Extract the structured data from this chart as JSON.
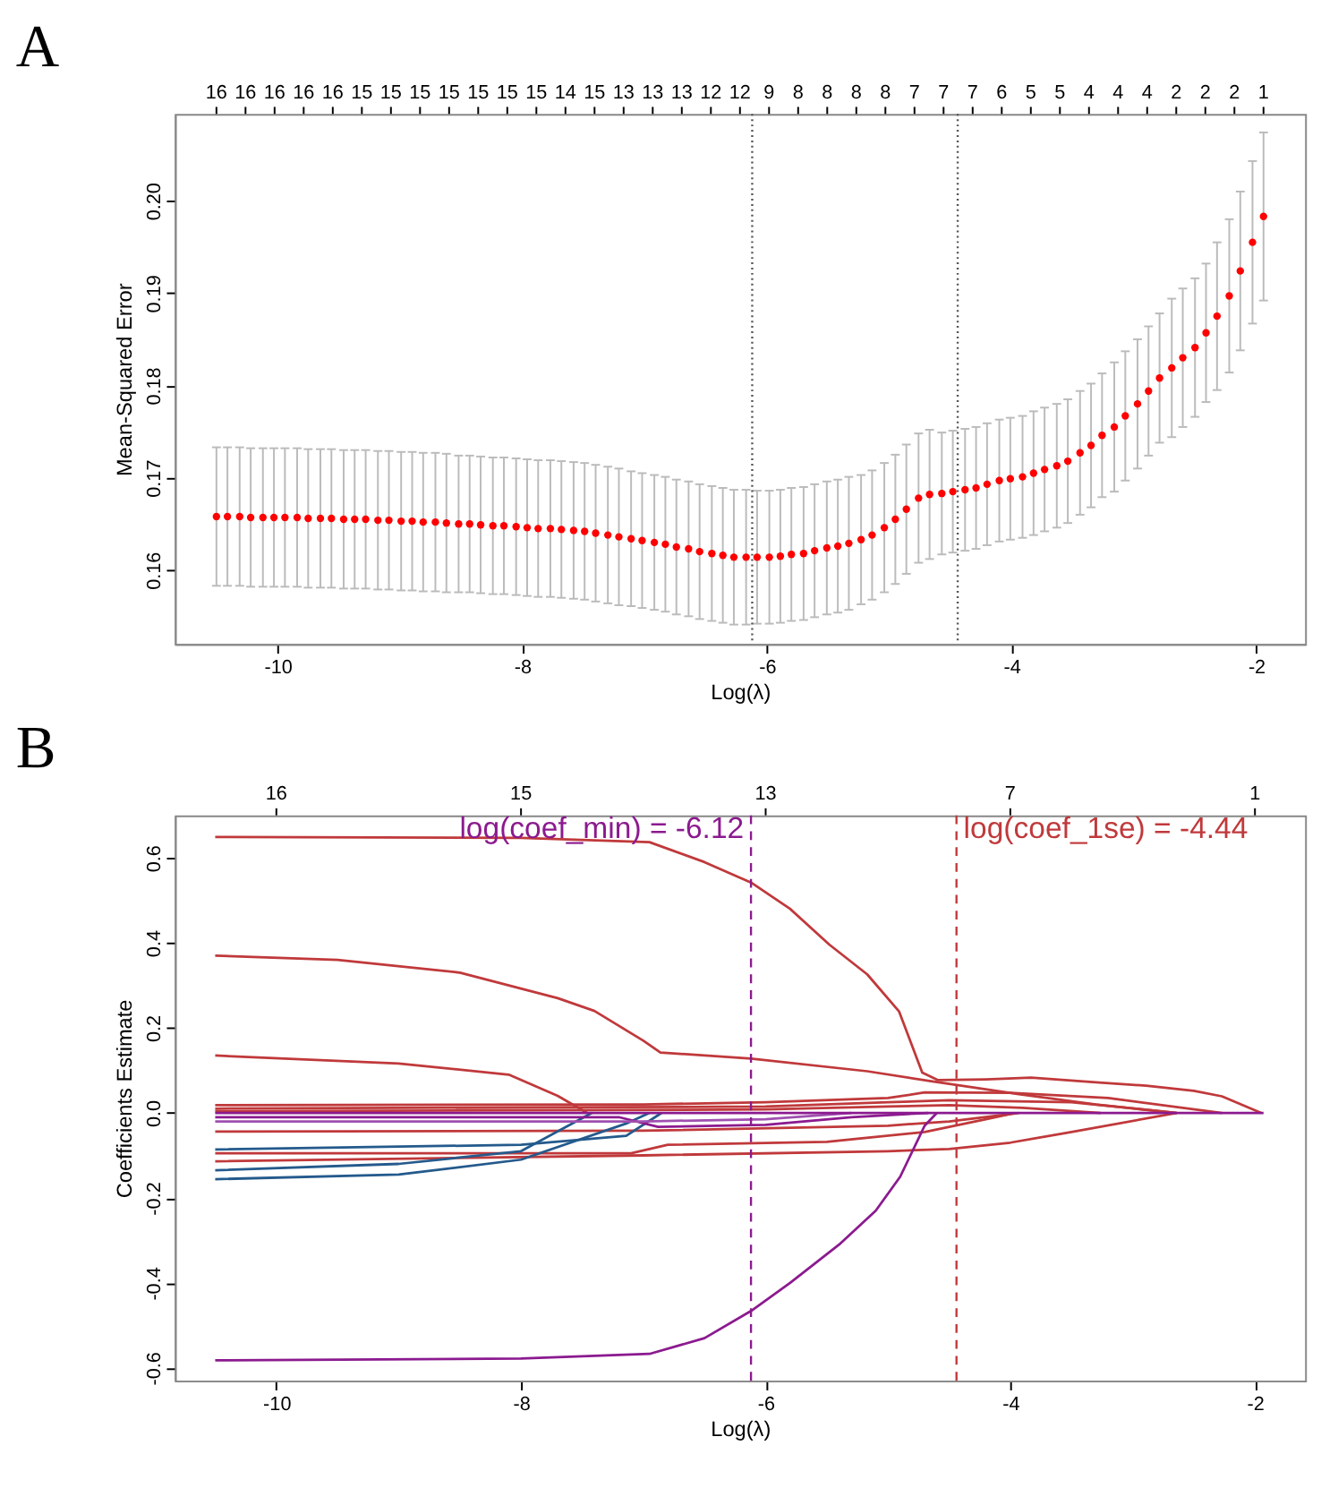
{
  "chart_data": [
    {
      "type": "scatter",
      "title": "A",
      "xlabel": "Log(λ)",
      "ylabel": "Mean-Squared Error",
      "marker": "circle",
      "grid": false,
      "legend": false,
      "x": [
        -10.5,
        -10.41,
        -10.31,
        -10.22,
        -10.12,
        -10.03,
        -9.94,
        -9.84,
        -9.75,
        -9.65,
        -9.56,
        -9.46,
        -9.37,
        -9.28,
        -9.18,
        -9.09,
        -8.99,
        -8.9,
        -8.81,
        -8.71,
        -8.62,
        -8.52,
        -8.43,
        -8.34,
        -8.24,
        -8.15,
        -8.05,
        -7.96,
        -7.87,
        -7.77,
        -7.68,
        -7.58,
        -7.49,
        -7.4,
        -7.3,
        -7.21,
        -7.11,
        -7.02,
        -6.92,
        -6.83,
        -6.74,
        -6.64,
        -6.55,
        -6.45,
        -6.36,
        -6.27,
        -6.17,
        -6.08,
        -5.98,
        -5.89,
        -5.8,
        -5.7,
        -5.61,
        -5.51,
        -5.42,
        -5.33,
        -5.23,
        -5.14,
        -5.04,
        -4.95,
        -4.86,
        -4.76,
        -4.67,
        -4.57,
        -4.48,
        -4.38,
        -4.29,
        -4.2,
        -4.1,
        -4.01,
        -3.91,
        -3.82,
        -3.73,
        -3.63,
        -3.54,
        -3.44,
        -3.35,
        -3.26,
        -3.16,
        -3.07,
        -2.97,
        -2.88,
        -2.79,
        -2.69,
        -2.6,
        -2.5,
        -2.41,
        -2.32,
        -2.22,
        -2.13,
        -2.03,
        -1.94
      ],
      "series": [
        {
          "color": "#ff0000",
          "values": [
            0.1658,
            0.1658,
            0.1658,
            0.1657,
            0.1657,
            0.1657,
            0.1657,
            0.1657,
            0.1656,
            0.1656,
            0.1656,
            0.1655,
            0.1655,
            0.1655,
            0.1654,
            0.1654,
            0.1653,
            0.1653,
            0.1652,
            0.1652,
            0.1651,
            0.165,
            0.165,
            0.1649,
            0.1648,
            0.1648,
            0.1647,
            0.1646,
            0.1645,
            0.1645,
            0.1644,
            0.1643,
            0.1642,
            0.164,
            0.1638,
            0.1636,
            0.1634,
            0.1632,
            0.163,
            0.1628,
            0.1625,
            0.1623,
            0.162,
            0.1618,
            0.1616,
            0.1614,
            0.1614,
            0.1614,
            0.1614,
            0.1615,
            0.1617,
            0.1618,
            0.1621,
            0.1624,
            0.1626,
            0.1629,
            0.1633,
            0.1638,
            0.1646,
            0.1655,
            0.1666,
            0.1678,
            0.1682,
            0.1683,
            0.1685,
            0.1687,
            0.1689,
            0.1693,
            0.1697,
            0.1699,
            0.1701,
            0.1705,
            0.1709,
            0.1713,
            0.1718,
            0.1727,
            0.1735,
            0.1746,
            0.1755,
            0.1767,
            0.178,
            0.1794,
            0.1808,
            0.1819,
            0.183,
            0.1841,
            0.1857,
            0.1875,
            0.1897,
            0.1924,
            0.1955,
            0.1983
          ],
          "errors": [
            0.0075,
            0.0075,
            0.0075,
            0.0075,
            0.0075,
            0.0075,
            0.0075,
            0.0075,
            0.0075,
            0.0075,
            0.0075,
            0.0075,
            0.0075,
            0.0075,
            0.0075,
            0.0075,
            0.0075,
            0.0075,
            0.0075,
            0.0075,
            0.0075,
            0.0074,
            0.0074,
            0.0074,
            0.0074,
            0.0074,
            0.0074,
            0.0074,
            0.0074,
            0.0074,
            0.0074,
            0.0074,
            0.0074,
            0.0074,
            0.0074,
            0.0074,
            0.0073,
            0.0073,
            0.0073,
            0.0073,
            0.0073,
            0.0073,
            0.0073,
            0.0073,
            0.0073,
            0.0073,
            0.0073,
            0.0072,
            0.0072,
            0.0072,
            0.0072,
            0.0072,
            0.0072,
            0.0072,
            0.0072,
            0.0072,
            0.007,
            0.007,
            0.007,
            0.007,
            0.007,
            0.007,
            0.007,
            0.0066,
            0.0066,
            0.0066,
            0.0066,
            0.0066,
            0.0066,
            0.0066,
            0.0066,
            0.0067,
            0.0067,
            0.0067,
            0.0067,
            0.0067,
            0.0067,
            0.0067,
            0.007,
            0.007,
            0.007,
            0.007,
            0.007,
            0.0075,
            0.0075,
            0.0075,
            0.0075,
            0.008,
            0.0083,
            0.0086,
            0.0088,
            0.0091
          ]
        }
      ],
      "xlim": [
        -10.84,
        -1.6
      ],
      "xticks": [
        -10,
        -8,
        -6,
        -4,
        -2
      ],
      "ylim": [
        0.152,
        0.2094
      ],
      "yticks": [
        {
          "value": 0.16,
          "label": "0.16"
        },
        {
          "value": 0.17,
          "label": "0.17"
        },
        {
          "value": 0.18,
          "label": "0.18"
        },
        {
          "value": 0.19,
          "label": "0.19"
        },
        {
          "value": 0.2,
          "label": "0.20"
        }
      ],
      "annotations": [
        "16",
        "16",
        "16",
        "16",
        "16",
        "15",
        "15",
        "15",
        "15",
        "15",
        "15",
        "15",
        "14",
        "15",
        "13",
        "13",
        "13",
        "12",
        "12",
        "9",
        "8",
        "8",
        "8",
        "8",
        "7",
        "7",
        "7",
        "6",
        "5",
        "5",
        "4",
        "4",
        "4",
        "2",
        "2",
        "2",
        "1"
      ],
      "ref_lines": [
        {
          "axis": "x",
          "value": -6.12,
          "color": "#555555",
          "line_style": "dotted"
        },
        {
          "axis": "x",
          "value": -4.44,
          "color": "#555555",
          "line_style": "dotted"
        }
      ]
    },
    {
      "type": "line",
      "title": "B",
      "xlabel": "Log(λ)",
      "ylabel": "Coefficients Estimate",
      "marker": "none",
      "line_style": "solid",
      "grid": false,
      "legend": false,
      "series": [
        {
          "color": "#c0393b",
          "x": [
            -10.5,
            -8,
            -6.95,
            -6.5,
            -6.12,
            -5.8,
            -5.48,
            -5.17,
            -4.91,
            -4.72,
            -4.59,
            -4.2,
            -3.83,
            -3.3,
            -2.89,
            -2.5,
            -2.27,
            -1.95
          ],
          "values": [
            0.649,
            0.647,
            0.637,
            0.59,
            0.542,
            0.48,
            0.396,
            0.326,
            0.239,
            0.095,
            0.077,
            0.079,
            0.083,
            0.072,
            0.064,
            0.052,
            0.039,
            0
          ]
        },
        {
          "color": "#c0393b",
          "x": [
            -10.5,
            -9.5,
            -8.5,
            -7.7,
            -7.4,
            -7.0,
            -6.86,
            -6.12,
            -5.17,
            -4.66,
            -3.93,
            -3.3,
            -2.64
          ],
          "values": [
            0.37,
            0.36,
            0.33,
            0.27,
            0.24,
            0.17,
            0.142,
            0.128,
            0.098,
            0.075,
            0.044,
            0.02,
            0
          ]
        },
        {
          "color": "#c0393b",
          "x": [
            -10.5,
            -9,
            -8.1,
            -7.7,
            -7.46
          ],
          "values": [
            0.135,
            0.116,
            0.09,
            0.04,
            0
          ]
        },
        {
          "color": "#c0393b",
          "x": [
            -10.5,
            -7,
            -6,
            -5,
            -4.7,
            -4,
            -3.2,
            -2.27
          ],
          "values": [
            0.018,
            0.02,
            0.025,
            0.035,
            0.048,
            0.047,
            0.035,
            0
          ]
        },
        {
          "color": "#c0393b",
          "x": [
            -10.5,
            -6,
            -5,
            -4.5,
            -3.5,
            -2.64
          ],
          "values": [
            0.01,
            0.015,
            0.025,
            0.03,
            0.025,
            0
          ]
        },
        {
          "color": "#c0393b",
          "x": [
            -10.5,
            -6,
            -5,
            -4.5,
            -3.9,
            -3.26
          ],
          "values": [
            0.004,
            0.008,
            0.015,
            0.018,
            0.012,
            0
          ]
        },
        {
          "color": "#c0393b",
          "x": [
            -10.5,
            -7,
            -5,
            -4.5,
            -3.93
          ],
          "values": [
            -0.044,
            -0.042,
            -0.03,
            -0.02,
            0
          ]
        },
        {
          "color": "#c0393b",
          "x": [
            -10.5,
            -7.1,
            -6.8,
            -5.5,
            -4.7,
            -4.2,
            -3.96
          ],
          "values": [
            -0.095,
            -0.095,
            -0.075,
            -0.068,
            -0.045,
            -0.015,
            0
          ]
        },
        {
          "color": "#c0393b",
          "x": [
            -10.5,
            -7,
            -5,
            -4.5,
            -4,
            -3.5,
            -2.64
          ],
          "values": [
            -0.114,
            -0.1,
            -0.09,
            -0.085,
            -0.07,
            -0.045,
            0
          ]
        },
        {
          "color": "#245a8c",
          "x": [
            -10.5,
            -8,
            -7.14,
            -6.85
          ],
          "values": [
            -0.086,
            -0.075,
            -0.054,
            0
          ]
        },
        {
          "color": "#245a8c",
          "x": [
            -10.5,
            -9,
            -8,
            -7.42
          ],
          "values": [
            -0.135,
            -0.12,
            -0.09,
            0
          ]
        },
        {
          "color": "#245a8c",
          "x": [
            -10.5,
            -9,
            -8,
            -7.14,
            -6.95
          ],
          "values": [
            -0.156,
            -0.145,
            -0.11,
            -0.025,
            0
          ]
        },
        {
          "color": "#8b1a8f",
          "x": [
            -10.5,
            -8,
            -6.95,
            -6.5,
            -6.12,
            -5.8,
            -5.4,
            -5.1,
            -4.9,
            -4.7,
            -4.6
          ],
          "values": [
            -0.582,
            -0.578,
            -0.567,
            -0.53,
            -0.466,
            -0.4,
            -0.31,
            -0.23,
            -0.15,
            -0.03,
            0
          ]
        },
        {
          "color": "#8b1a8f",
          "x": [
            -10.5,
            -7.2,
            -6.88,
            -6,
            -5.3,
            -4.67
          ],
          "values": [
            -0.01,
            -0.01,
            -0.033,
            -0.028,
            -0.01,
            0
          ]
        },
        {
          "color": "#a050b0",
          "x": [
            -10.5,
            -7,
            -6,
            -5.3
          ],
          "values": [
            -0.02,
            -0.02,
            -0.015,
            0
          ]
        },
        {
          "color": "#8b1a8f",
          "x": [
            -10.5,
            -1.93
          ],
          "values": [
            0,
            0
          ]
        }
      ],
      "xlim": [
        -10.83,
        -1.59
      ],
      "xticks": [
        -10,
        -8,
        -6,
        -4,
        -2
      ],
      "ylim": [
        -0.63,
        0.7
      ],
      "yticks": [
        {
          "value": -0.6,
          "label": "-0.6"
        },
        {
          "value": -0.4,
          "label": "-0.4"
        },
        {
          "value": -0.2,
          "label": "-0.2"
        },
        {
          "value": 0,
          "label": "0.0"
        },
        {
          "value": 0.2,
          "label": "0.2"
        },
        {
          "value": 0.4,
          "label": "0.4"
        },
        {
          "value": 0.6,
          "label": "0.6"
        }
      ],
      "annotations": [
        "16",
        "15",
        "13",
        "7",
        "1"
      ],
      "ref_lines": [
        {
          "axis": "x",
          "value": -6.12,
          "label": "log(coef_min) = -6.12",
          "color": "#8b1a8f",
          "line_style": "dashed"
        },
        {
          "axis": "x",
          "value": -4.44,
          "label": "log(coef_1se) = -4.44",
          "color": "#c0393b",
          "line_style": "dashed"
        }
      ]
    }
  ]
}
